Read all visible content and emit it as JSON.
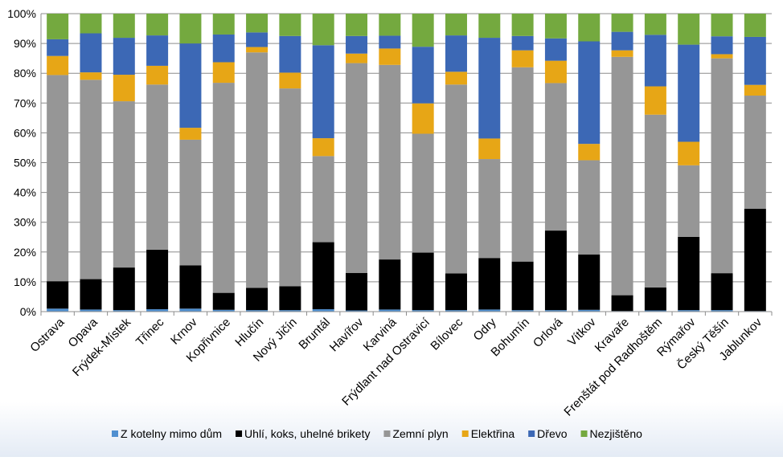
{
  "chart_data": {
    "type": "bar",
    "stacked": true,
    "percent": true,
    "title": "",
    "xlabel": "",
    "ylabel": "",
    "ylim": [
      0,
      100
    ],
    "yticks": [
      "0%",
      "10%",
      "20%",
      "30%",
      "40%",
      "50%",
      "60%",
      "70%",
      "80%",
      "90%",
      "100%"
    ],
    "grid": true,
    "legend_position": "bottom",
    "categories": [
      "Ostrava",
      "Opava",
      "Frýdek-Místek",
      "Třinec",
      "Krnov",
      "Kopřivnice",
      "Hlučín",
      "Nový Jičín",
      "Bruntál",
      "Havířov",
      "Karviná",
      "Frýdlant nad Ostravicí",
      "Bílovec",
      "Odry",
      "Bohumín",
      "Orlová",
      "Vítkov",
      "Kravaře",
      "Frenštát pod Radhoštěm",
      "Rýmařov",
      "Český Těšín",
      "Jablunkov"
    ],
    "series": [
      {
        "name": "Z kotelny mimo dům",
        "color": "#4f8fd0",
        "values": [
          1.0,
          0.7,
          0.5,
          0.8,
          1.0,
          0.6,
          0.5,
          0.5,
          0.8,
          0.4,
          0.7,
          0.5,
          0.5,
          0.7,
          0.5,
          0.5,
          0.6,
          0.2,
          0.4,
          0.5,
          0.5,
          0.2
        ]
      },
      {
        "name": "Uhlí, koks, uhelné brikety",
        "color": "#000000",
        "values": [
          9.2,
          10.2,
          14.3,
          20.0,
          14.5,
          5.7,
          7.5,
          8.0,
          22.5,
          12.6,
          16.8,
          19.3,
          12.3,
          17.3,
          16.3,
          26.7,
          18.6,
          5.3,
          7.7,
          24.6,
          12.4,
          34.3
        ]
      },
      {
        "name": "Zemní plyn",
        "color": "#969696",
        "values": [
          69.2,
          66.9,
          55.8,
          55.4,
          42.2,
          70.5,
          79.0,
          66.4,
          28.9,
          70.4,
          65.3,
          39.9,
          63.4,
          33.2,
          65.2,
          49.5,
          31.6,
          80.0,
          58.0,
          24.0,
          72.1,
          38.0
        ]
      },
      {
        "name": "Elektřina",
        "color": "#e7a616",
        "values": [
          6.4,
          2.5,
          8.9,
          6.3,
          4.0,
          6.9,
          1.8,
          5.3,
          6.0,
          3.2,
          5.5,
          10.2,
          4.3,
          6.9,
          5.7,
          7.5,
          5.5,
          2.2,
          9.5,
          7.9,
          1.4,
          3.6
        ]
      },
      {
        "name": "Dřevo",
        "color": "#3c68b5",
        "values": [
          5.6,
          13.1,
          12.4,
          10.2,
          28.3,
          9.3,
          4.9,
          12.3,
          31.2,
          5.9,
          4.3,
          19.0,
          12.2,
          33.8,
          4.8,
          7.5,
          34.4,
          6.2,
          17.3,
          32.6,
          6.0,
          16.1
        ]
      },
      {
        "name": "Nezjištěno",
        "color": "#74a93f",
        "values": [
          8.6,
          6.6,
          8.1,
          7.3,
          10.0,
          7.0,
          6.3,
          7.5,
          10.6,
          7.5,
          7.4,
          11.1,
          7.3,
          8.1,
          7.5,
          8.3,
          9.3,
          6.1,
          7.1,
          10.4,
          7.6,
          7.8
        ]
      }
    ]
  }
}
